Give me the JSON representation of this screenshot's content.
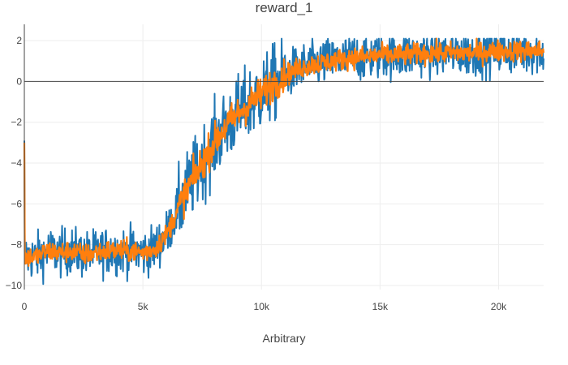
{
  "chart_data": {
    "type": "line",
    "title": "reward_1",
    "xlabel": "Arbitrary",
    "ylabel": "",
    "xlim": [
      0,
      21900
    ],
    "ylim": [
      -10.2,
      2.8
    ],
    "xticks": [
      0,
      5000,
      10000,
      15000,
      20000
    ],
    "xtick_labels": [
      "0",
      "5k",
      "10k",
      "15k",
      "20k"
    ],
    "yticks": [
      -10,
      -8,
      -6,
      -4,
      -2,
      0,
      2
    ],
    "ytick_labels": [
      "−10",
      "−8",
      "−6",
      "−4",
      "−2",
      "0",
      "2"
    ],
    "grid": true,
    "legend": "none",
    "series": [
      {
        "color": "#1f77b4",
        "noise": 1.1,
        "x": [
          0,
          500,
          1000,
          1500,
          2000,
          2500,
          3000,
          3500,
          4000,
          4500,
          5000,
          5500,
          6000,
          6500,
          7000,
          7500,
          8000,
          8500,
          9000,
          9500,
          10000,
          10500,
          11000,
          11500,
          12000,
          12500,
          13000,
          13500,
          14000,
          14500,
          15000,
          16000,
          17000,
          18000,
          19000,
          20000,
          21000,
          21900
        ],
        "y": [
          -8.6,
          -8.6,
          -8.3,
          -8.4,
          -8.3,
          -8.5,
          -8.4,
          -8.3,
          -8.3,
          -8.3,
          -8.4,
          -8.2,
          -7.5,
          -6.2,
          -5.0,
          -4.0,
          -3.0,
          -2.2,
          -1.6,
          -1.1,
          -0.6,
          -0.1,
          0.3,
          0.6,
          0.8,
          0.9,
          1.0,
          1.1,
          1.2,
          1.2,
          1.3,
          1.3,
          1.4,
          1.4,
          1.4,
          1.5,
          1.5,
          1.5
        ]
      },
      {
        "color": "#ff7f0e",
        "noise": 0.5,
        "x": [
          0,
          500,
          1000,
          1500,
          2000,
          2500,
          3000,
          3500,
          4000,
          4500,
          5000,
          5500,
          6000,
          6500,
          7000,
          7500,
          8000,
          8500,
          9000,
          9500,
          10000,
          10500,
          11000,
          11500,
          12000,
          12500,
          13000,
          13500,
          14000,
          14500,
          15000,
          16000,
          17000,
          18000,
          19000,
          20000,
          21000,
          21900
        ],
        "y": [
          -8.6,
          -8.6,
          -8.3,
          -8.4,
          -8.3,
          -8.5,
          -8.4,
          -8.3,
          -8.3,
          -8.3,
          -8.4,
          -8.2,
          -7.5,
          -6.2,
          -5.0,
          -4.0,
          -3.0,
          -2.2,
          -1.6,
          -1.1,
          -0.6,
          -0.1,
          0.3,
          0.6,
          0.8,
          0.9,
          1.0,
          1.1,
          1.2,
          1.2,
          1.3,
          1.3,
          1.4,
          1.4,
          1.4,
          1.5,
          1.5,
          1.5
        ]
      }
    ]
  }
}
